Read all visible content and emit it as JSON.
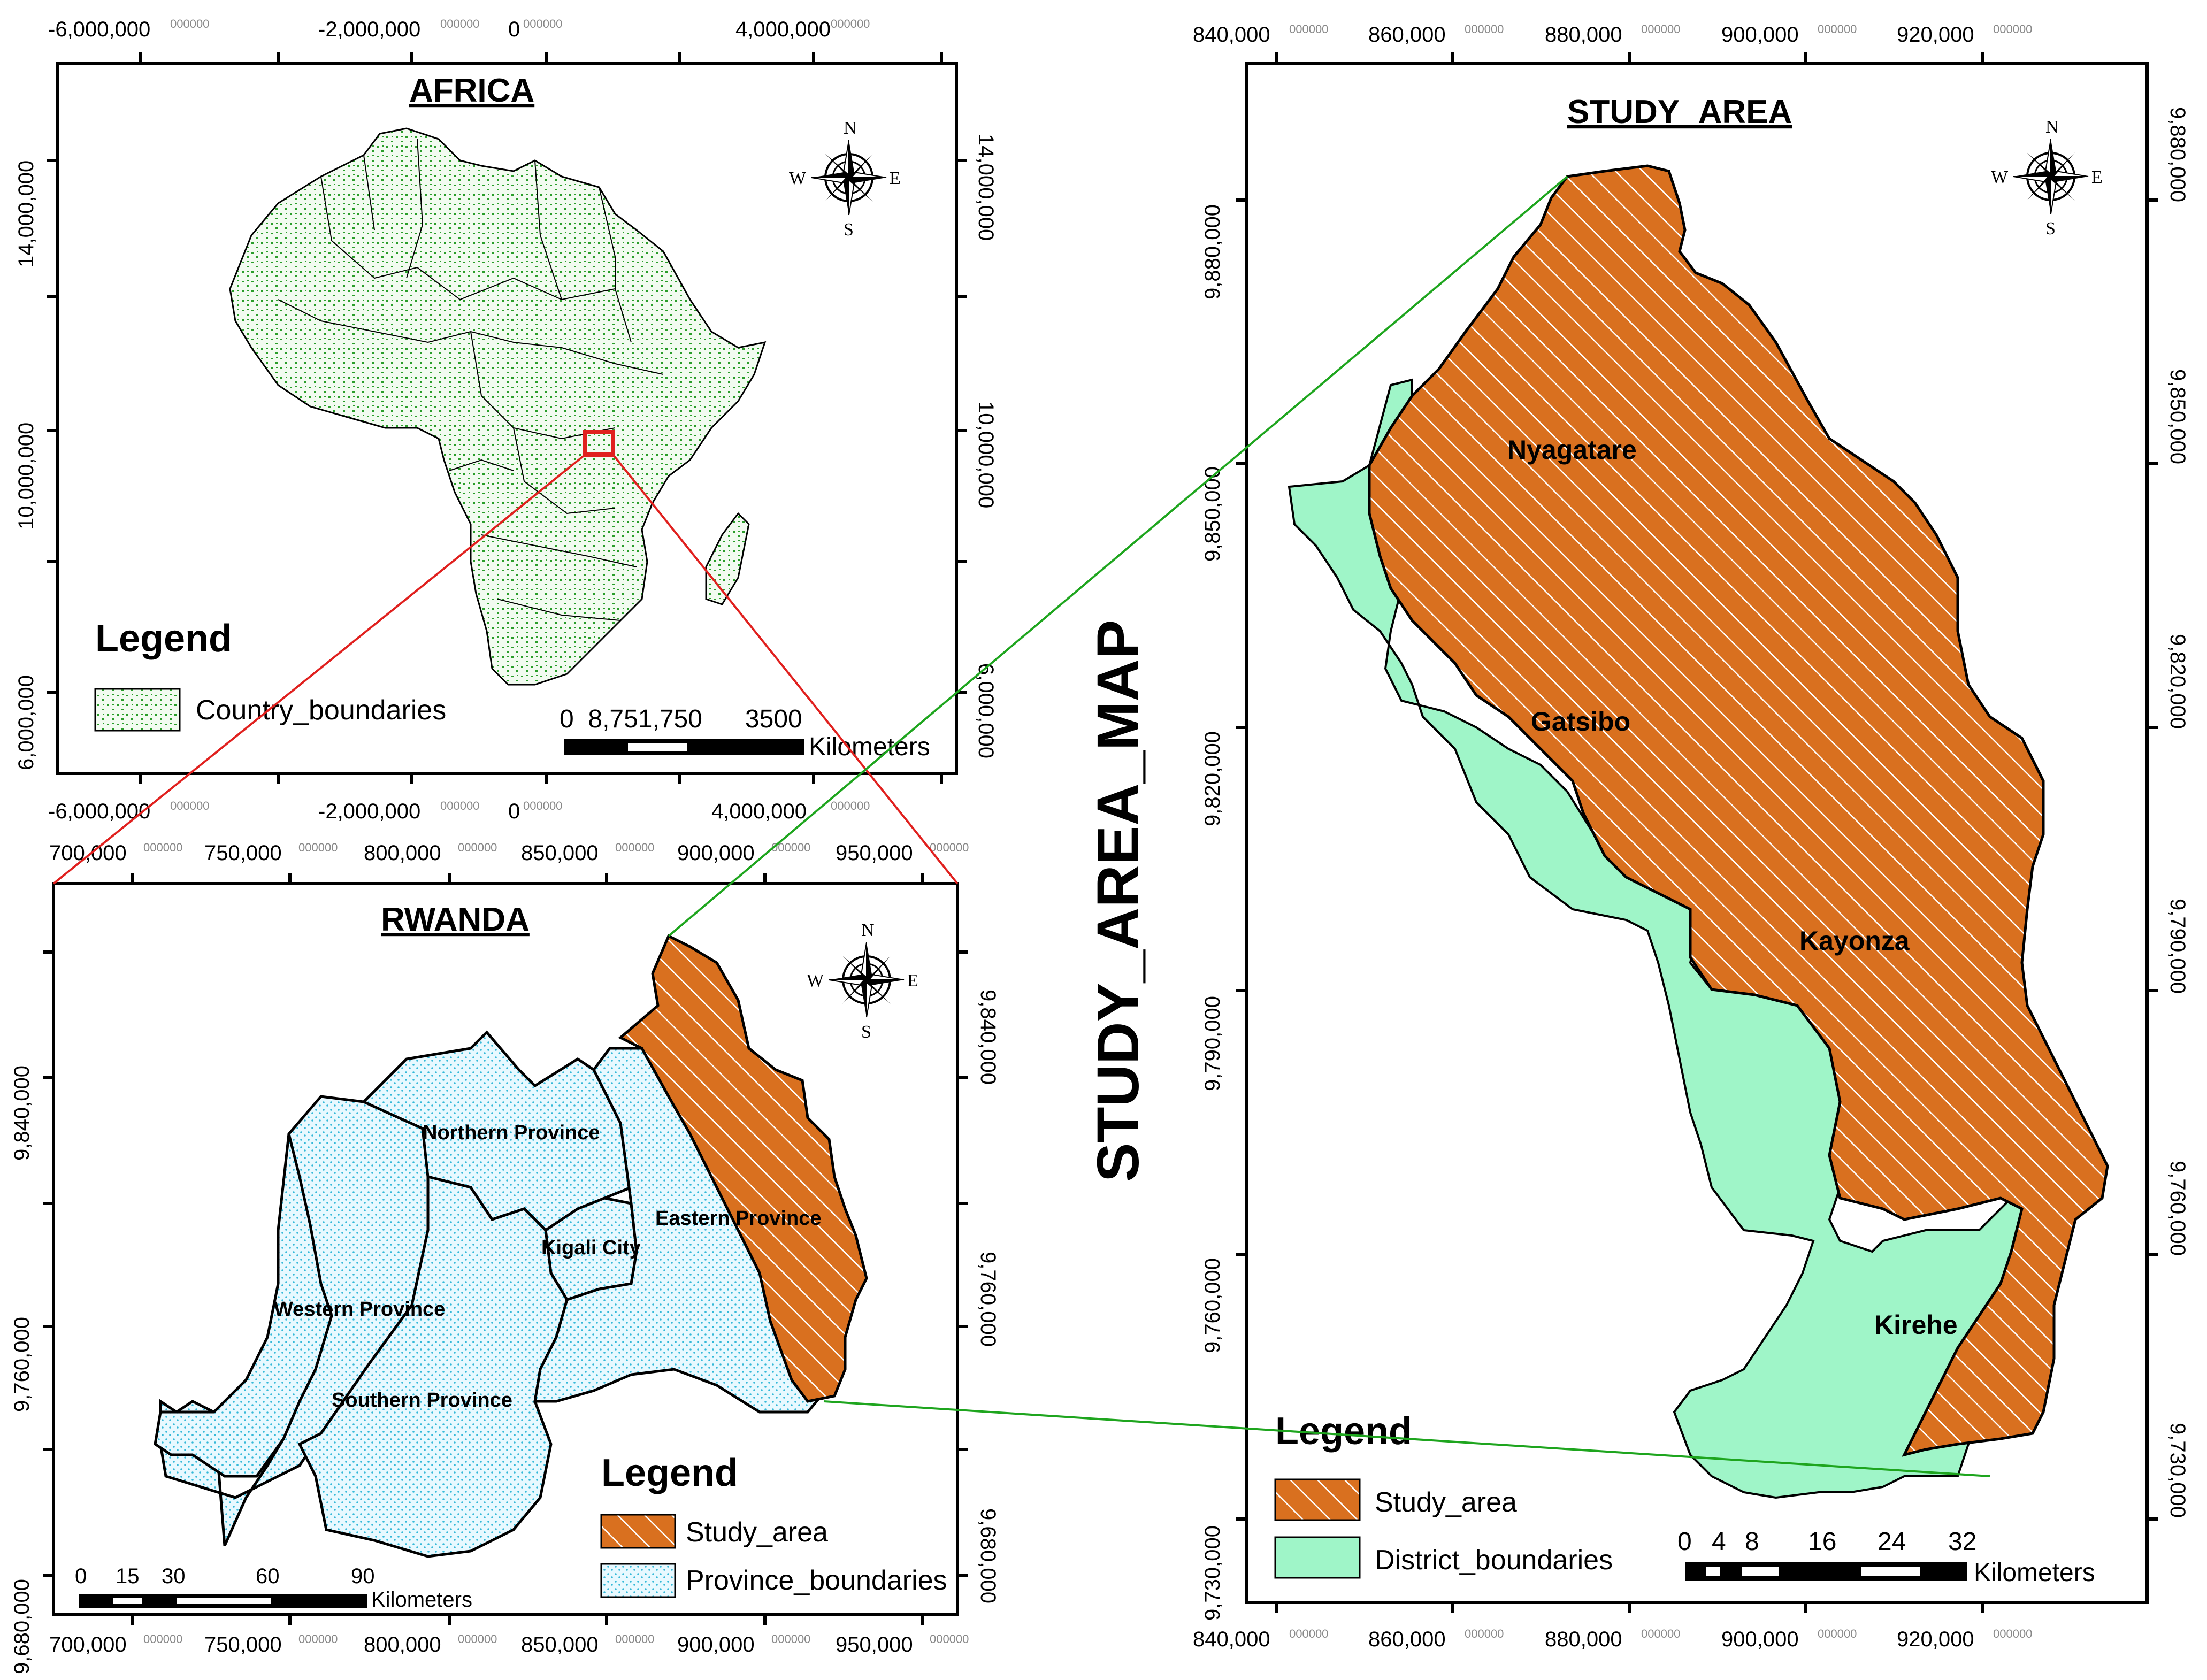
{
  "main_title": "STUDY_AREA_MAP",
  "africa": {
    "title": "AFRICA",
    "top_labels": [
      "-6,000,000",
      "-2,000,000",
      "0",
      "4,000,000"
    ],
    "bottom_labels": [
      "-6,000,000",
      "-2,000,000",
      "0",
      "4,000,000"
    ],
    "left_labels": [
      "14,000,000",
      "10,000,000",
      "6,000,000"
    ],
    "right_labels": [
      "14,000,000",
      "10,000,000",
      "6,000,000"
    ],
    "coord_suffix": "000000",
    "legend_title": "Legend",
    "legend_items": [
      {
        "label": "Country_boundaries"
      }
    ],
    "scale_numbers": "0  8,751,750      3500",
    "scale_unit": "Kilometers",
    "compass": {
      "n": "N",
      "s": "S",
      "e": "E",
      "w": "W"
    }
  },
  "rwanda": {
    "title": "RWANDA",
    "top_labels": [
      "700,000",
      "750,000",
      "800,000",
      "850,000",
      "900,000",
      "950,000"
    ],
    "bottom_labels": [
      "700,000",
      "750,000",
      "800,000",
      "850,000",
      "900,000",
      "950,000"
    ],
    "left_labels": [
      "9,840,000",
      "9,760,000",
      "9,680,000"
    ],
    "right_labels": [
      "9,840,000",
      "9,760,000",
      "9,680,000"
    ],
    "coord_suffix": "000000",
    "provinces": [
      "Northern Province",
      "Eastern Province",
      "Kigali City",
      "Western Province",
      "Southern Province"
    ],
    "legend_title": "Legend",
    "legend_items": [
      {
        "label": "Study_area"
      },
      {
        "label": "Province_boundaries"
      }
    ],
    "scale_numbers": [
      "0",
      "15",
      "30",
      "60",
      "90"
    ],
    "scale_unit": "Kilometers",
    "compass": {
      "n": "N",
      "s": "S",
      "e": "E",
      "w": "W"
    }
  },
  "study_area": {
    "title": "STUDY_AREA",
    "top_labels": [
      "840,000",
      "860,000",
      "880,000",
      "900,000",
      "920,000"
    ],
    "bottom_labels": [
      "840,000",
      "860,000",
      "880,000",
      "900,000",
      "920,000"
    ],
    "left_labels": [
      "9,880,000",
      "9,850,000",
      "9,820,000",
      "9,790,000",
      "9,760,000",
      "9,730,000"
    ],
    "right_labels": [
      "9,880,000",
      "9,850,000",
      "9,820,000",
      "9,790,000",
      "9,760,000",
      "9,730,000"
    ],
    "coord_suffix": "000000",
    "districts": [
      "Nyagatare",
      "Gatsibo",
      "Kayonza",
      "Kirehe"
    ],
    "legend_title": "Legend",
    "legend_items": [
      {
        "label": "Study_area"
      },
      {
        "label": "District_boundaries"
      }
    ],
    "scale_numbers": [
      "0",
      "4",
      "8",
      "16",
      "24",
      "32"
    ],
    "scale_unit": "Kilometers",
    "compass": {
      "n": "N",
      "s": "S",
      "e": "E",
      "w": "W"
    }
  },
  "colors": {
    "study_area": "#d9701f",
    "district": "#9ff5c8",
    "province_dots": "#33b8d8",
    "country_dots": "#2a9d2a",
    "africa_callout": "#e0201e",
    "study_callout": "#1ea51e"
  }
}
